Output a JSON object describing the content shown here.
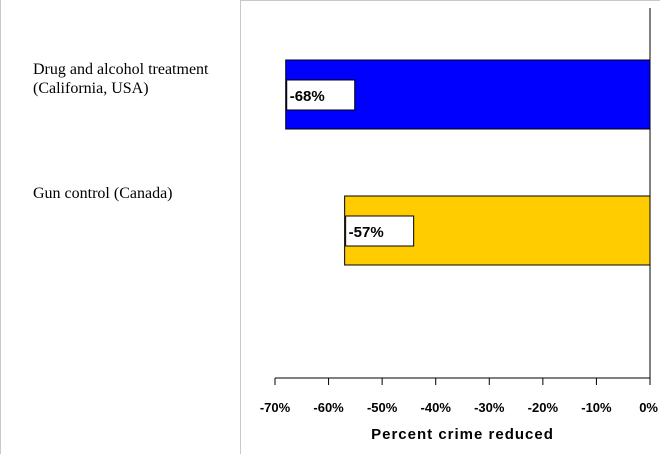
{
  "chart_data": {
    "type": "bar",
    "orientation": "horizontal",
    "categories": [
      "Drug and alcohol treatment (California, USA)",
      "Gun control (Canada)"
    ],
    "values": [
      -68,
      -57
    ],
    "value_labels": [
      "-68%",
      "-57%"
    ],
    "colors": [
      "#0000ff",
      "#ffcc00"
    ],
    "xlabel": "Percent crime reduced",
    "xlim": [
      -70,
      0
    ],
    "xticks": [
      -70,
      -60,
      -50,
      -40,
      -30,
      -20,
      -10,
      0
    ],
    "xtick_labels": [
      "-70%",
      "-60%",
      "-50%",
      "-40%",
      "-30%",
      "-20%",
      "-10%",
      "0%"
    ],
    "grid": false,
    "legend": "none"
  }
}
